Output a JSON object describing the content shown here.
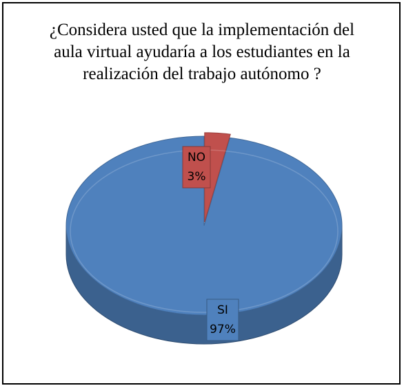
{
  "chart_data": {
    "type": "pie",
    "title": "¿Considera usted que la implementación del aula virtual ayudaría a los estudiantes en la realización del trabajo autónomo ?",
    "categories": [
      "SI",
      "NO"
    ],
    "values": [
      97,
      3
    ],
    "value_labels": [
      "97%",
      "3%"
    ],
    "colors": [
      "#4f81bd",
      "#c0504d"
    ]
  }
}
